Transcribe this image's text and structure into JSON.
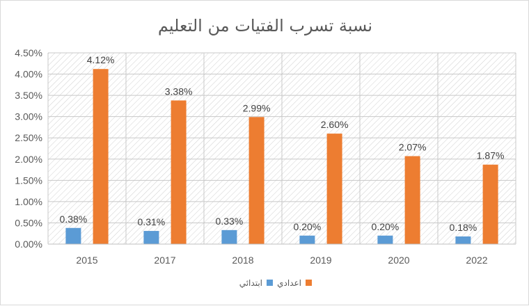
{
  "chart_data": {
    "type": "bar",
    "title": "نسبة تسرب الفتيات من التعليم",
    "categories": [
      "2015",
      "2017",
      "2018",
      "2019",
      "2020",
      "2022"
    ],
    "series": [
      {
        "name": "ابتدائي",
        "color": "#5b9bd5",
        "values": [
          0.38,
          0.31,
          0.33,
          0.2,
          0.2,
          0.18
        ],
        "labels": [
          "0.38%",
          "0.31%",
          "0.33%",
          "0.20%",
          "0.20%",
          "0.18%"
        ]
      },
      {
        "name": "اعدادي",
        "color": "#ed7d31",
        "values": [
          4.12,
          3.38,
          2.99,
          2.6,
          2.07,
          1.87
        ],
        "labels": [
          "4.12%",
          "3.38%",
          "2.99%",
          "2.60%",
          "2.07%",
          "1.87%"
        ]
      }
    ],
    "ylim": [
      0,
      4.5
    ],
    "yticks": [
      "0.00%",
      "0.50%",
      "1.00%",
      "1.50%",
      "2.00%",
      "2.50%",
      "3.00%",
      "3.50%",
      "4.00%",
      "4.50%"
    ],
    "legend_position": "bottom",
    "grid": true
  }
}
